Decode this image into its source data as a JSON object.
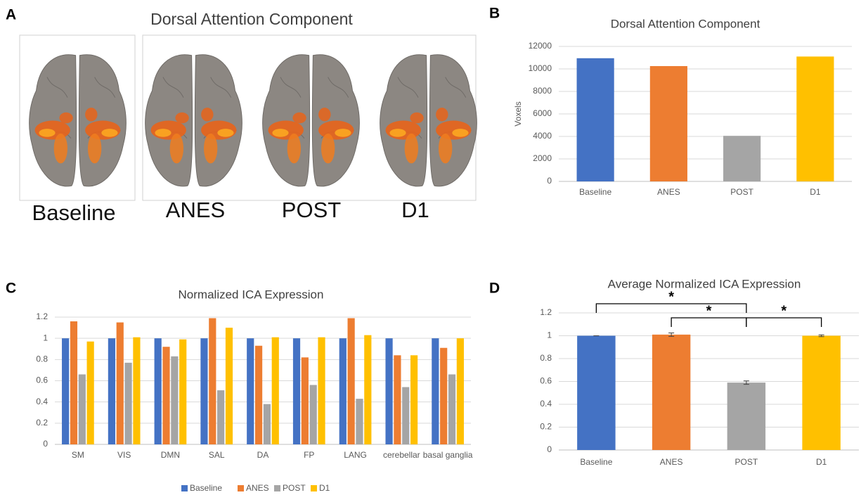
{
  "panel_labels": [
    "A",
    "B",
    "C",
    "D"
  ],
  "figure_a": {
    "title": "Dorsal Attention Component",
    "labels": [
      "Baseline",
      "ANES",
      "POST",
      "D1"
    ]
  },
  "chart_data": [
    {
      "type": "bar",
      "title": "Dorsal Attention Component",
      "y_label": "Voxels",
      "categories": [
        "Baseline",
        "ANES",
        "POST",
        "D1"
      ],
      "values": [
        10950,
        10250,
        4050,
        11100
      ],
      "colors": [
        "#4472c4",
        "#ed7d31",
        "#a5a5a5",
        "#ffc000"
      ],
      "ylim": [
        0,
        12000
      ],
      "yticks": [
        0,
        2000,
        4000,
        6000,
        8000,
        10000,
        12000
      ],
      "grid": true
    },
    {
      "type": "bar",
      "title": "Normalized ICA Expression",
      "categories": [
        "SM",
        "VIS",
        "DMN",
        "SAL",
        "DA",
        "FP",
        "LANG",
        "cerebellar",
        "basal ganglia"
      ],
      "series": [
        {
          "name": "Baseline",
          "color": "#4472c4",
          "values": [
            1,
            1,
            1,
            1,
            1,
            1,
            1,
            1,
            1
          ]
        },
        {
          "name": "ANES",
          "color": "#ed7d31",
          "values": [
            1.16,
            1.15,
            0.92,
            1.19,
            0.93,
            0.82,
            1.19,
            0.84,
            0.91
          ]
        },
        {
          "name": "POST",
          "color": "#a5a5a5",
          "values": [
            0.66,
            0.77,
            0.83,
            0.51,
            0.38,
            0.56,
            0.43,
            0.54,
            0.66
          ]
        },
        {
          "name": "D1",
          "color": "#ffc000",
          "values": [
            0.97,
            1.01,
            0.99,
            1.1,
            1.01,
            1.01,
            1.03,
            0.84,
            1.0
          ]
        }
      ],
      "ylim": [
        0,
        1.2
      ],
      "yticks": [
        0,
        0.2,
        0.4,
        0.6,
        0.8,
        1,
        1.2
      ],
      "grid": true,
      "legend": "bottom"
    },
    {
      "type": "bar",
      "title": "Average Normalized ICA Expression",
      "categories": [
        "Baseline",
        "ANES",
        "POST",
        "D1"
      ],
      "values": [
        1,
        1.01,
        0.59,
        1.0
      ],
      "errors": [
        0,
        0.015,
        0.015,
        0.008
      ],
      "colors": [
        "#4472c4",
        "#ed7d31",
        "#a5a5a5",
        "#ffc000"
      ],
      "ylim": [
        0,
        1.2
      ],
      "yticks": [
        0,
        0.2,
        0.4,
        0.6,
        0.8,
        1,
        1.2
      ],
      "grid": true,
      "significance": [
        {
          "between": [
            0,
            2
          ],
          "label": "*"
        },
        {
          "between": [
            1,
            2
          ],
          "label": "*"
        },
        {
          "between": [
            2,
            3
          ],
          "label": "*"
        }
      ]
    }
  ]
}
